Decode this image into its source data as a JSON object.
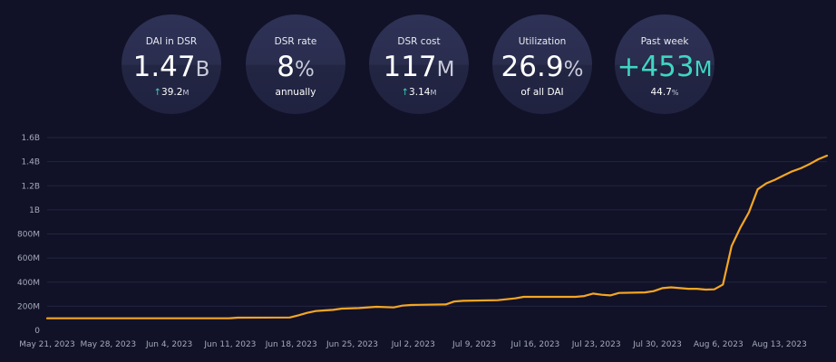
{
  "stats": [
    {
      "label": "DAI in DSR",
      "value": "1.47",
      "unit": "B",
      "sub_arrow": "↑",
      "sub_value": "39.2",
      "sub_unit": "M",
      "sub_text": ""
    },
    {
      "label": "DSR rate",
      "value": "8",
      "unit": "%",
      "sub_arrow": "",
      "sub_value": "",
      "sub_unit": "",
      "sub_text": "annually"
    },
    {
      "label": "DSR cost",
      "value": "117",
      "unit": "M",
      "sub_arrow": "↑",
      "sub_value": "3.14",
      "sub_unit": "M",
      "sub_text": ""
    },
    {
      "label": "Utilization",
      "value": "26.9",
      "unit": "%",
      "sub_arrow": "",
      "sub_value": "",
      "sub_unit": "",
      "sub_text": "of all DAI"
    },
    {
      "label": "Past week",
      "value": "+453",
      "unit": "M",
      "sub_arrow": "",
      "sub_value": "44.7",
      "sub_unit": "%",
      "sub_text": ""
    }
  ],
  "colors": {
    "line": "#f5a623",
    "accent": "#3fd6c2",
    "background": "#111227"
  },
  "chart_data": {
    "type": "line",
    "title": "",
    "xlabel": "",
    "ylabel": "",
    "y_ticks": [
      "0",
      "200M",
      "400M",
      "600M",
      "800M",
      "1B",
      "1.2B",
      "1.4B",
      "1.6B"
    ],
    "ylim": [
      0,
      1600
    ],
    "x_ticks": [
      "May 21, 2023",
      "May 28, 2023",
      "Jun 4, 2023",
      "Jun 11, 2023",
      "Jun 18, 2023",
      "Jun 25, 2023",
      "Jul 2, 2023",
      "Jul 9, 2023",
      "Jul 16, 2023",
      "Jul 23, 2023",
      "Jul 30, 2023",
      "Aug 6, 2023",
      "Aug 13, 2023"
    ],
    "xlim": [
      "2023-05-21",
      "2023-08-19"
    ],
    "grid": true,
    "legend": "none",
    "series": [
      {
        "x": [
          "2023-05-21",
          "2023-05-28",
          "2023-06-04",
          "2023-06-11",
          "2023-06-12",
          "2023-06-18",
          "2023-06-19",
          "2023-06-20",
          "2023-06-21",
          "2023-06-22",
          "2023-06-23",
          "2023-06-24",
          "2023-06-26",
          "2023-06-28",
          "2023-06-30",
          "2023-07-01",
          "2023-07-02",
          "2023-07-03",
          "2023-07-06",
          "2023-07-07",
          "2023-07-08",
          "2023-07-12",
          "2023-07-13",
          "2023-07-14",
          "2023-07-15",
          "2023-07-21",
          "2023-07-22",
          "2023-07-23",
          "2023-07-24",
          "2023-07-25",
          "2023-07-26",
          "2023-07-29",
          "2023-07-30",
          "2023-07-31",
          "2023-08-01",
          "2023-08-03",
          "2023-08-04",
          "2023-08-05",
          "2023-08-06",
          "2023-08-07",
          "2023-08-08",
          "2023-08-09",
          "2023-08-10",
          "2023-08-11",
          "2023-08-12",
          "2023-08-13",
          "2023-08-14",
          "2023-08-15",
          "2023-08-16",
          "2023-08-17",
          "2023-08-18",
          "2023-08-19"
        ],
        "y": [
          100,
          100,
          100,
          100,
          105,
          107,
          125,
          145,
          160,
          165,
          170,
          180,
          185,
          195,
          190,
          205,
          210,
          212,
          215,
          240,
          245,
          250,
          258,
          265,
          278,
          278,
          285,
          305,
          295,
          290,
          310,
          315,
          325,
          350,
          357,
          345,
          345,
          338,
          340,
          380,
          700,
          850,
          980,
          1170,
          1220,
          1250,
          1285,
          1320,
          1345,
          1380,
          1420,
          1450
        ]
      }
    ]
  }
}
